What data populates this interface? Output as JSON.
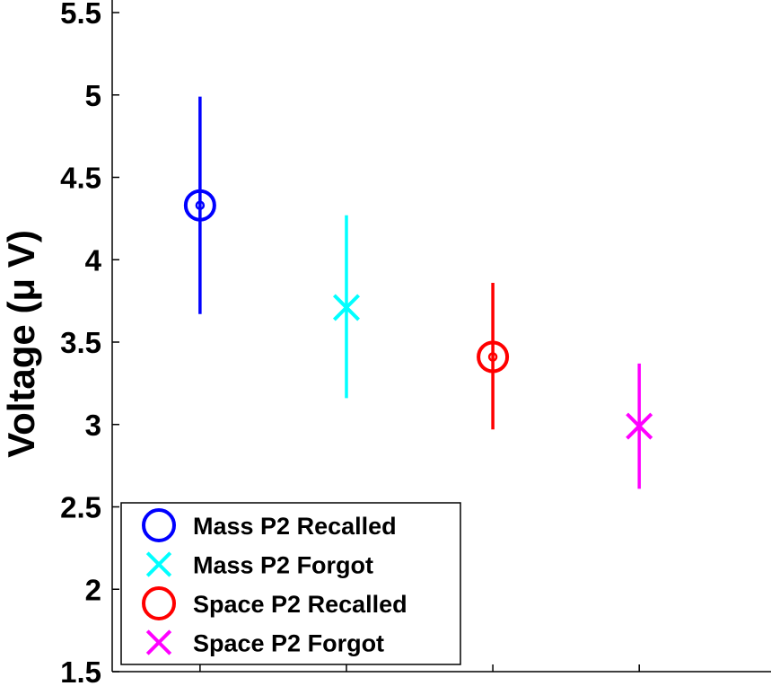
{
  "chart_data": {
    "type": "scatter",
    "title": "",
    "xlabel": "",
    "ylabel": "Voltage (μ V)",
    "ylim": [
      1.5,
      5.5
    ],
    "yticks": [
      "1.5",
      "2",
      "2.5",
      "3",
      "3.5",
      "4",
      "4.5",
      "5",
      "5.5"
    ],
    "grid": false,
    "legend_position": "bottom-left",
    "series": [
      {
        "name": "Mass P2 Recalled",
        "x": 1,
        "y": 4.33,
        "err_low": 3.67,
        "err_high": 4.99,
        "marker": "circle",
        "color": "#0000ff"
      },
      {
        "name": "Mass P2 Forgot",
        "x": 2,
        "y": 3.71,
        "err_low": 3.16,
        "err_high": 4.27,
        "marker": "x",
        "color": "#00ffff"
      },
      {
        "name": "Space P2 Recalled",
        "x": 3,
        "y": 3.41,
        "err_low": 2.97,
        "err_high": 3.86,
        "marker": "circle",
        "color": "#ff0000"
      },
      {
        "name": "Space P2 Forgot",
        "x": 4,
        "y": 2.99,
        "err_low": 2.61,
        "err_high": 3.37,
        "marker": "x",
        "color": "#ff00ff"
      }
    ],
    "xlim": [
      0.4,
      4.9
    ]
  }
}
